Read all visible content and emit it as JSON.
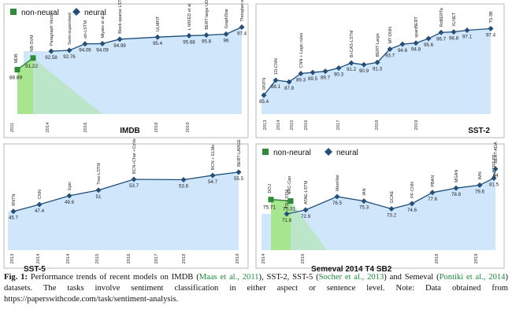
{
  "legend": {
    "non_neural": "non-neural",
    "neural": "neural"
  },
  "colors": {
    "area": "#cfe6fb",
    "line": "#1f4e79",
    "marker": "#264f78",
    "non_neural": "#2e8b3a",
    "green_area": "#a7e58f"
  },
  "chart_data": [
    {
      "type": "line",
      "title": "IMDB",
      "legend": [
        "non-neural",
        "neural"
      ],
      "legend_position": "top-left",
      "x_tick_labels": [
        "2011",
        "2014",
        "2016",
        "2018",
        "2019"
      ],
      "non_neural_points": [
        {
          "model": "MDB",
          "value": 88.89,
          "value_label": "88.89"
        },
        {
          "model": "NB-SVM",
          "value": 91.22,
          "value_label": "91.22"
        }
      ],
      "neural_points": [
        {
          "model": "Paragraph Vector",
          "value": 92.58,
          "value_label": "92.58"
        },
        {
          "model": "Semi-supervised",
          "value": 92.76,
          "value_label": "92.76"
        },
        {
          "model": "oh-LSTM",
          "value": 94.06,
          "value_label": "94.06"
        },
        {
          "model": "Miyato et al.",
          "value": 94.09,
          "value_label": "94.09"
        },
        {
          "model": "Block-sparse LSTM",
          "value": 94.99,
          "value_label": "94.99"
        },
        {
          "model": "ULMFiT",
          "value": 95.4,
          "value_label": "95.4"
        },
        {
          "model": "L MIXED et al.",
          "value": 95.68,
          "value_label": "95.68"
        },
        {
          "model": "BERT-large UDA",
          "value": 95.8,
          "value_label": "95.8"
        },
        {
          "model": "GraphStar",
          "value": 96,
          "value_label": "96"
        },
        {
          "model": "Thongtan et al.",
          "value": 97.4,
          "value_label": "97.4"
        }
      ]
    },
    {
      "type": "line",
      "title": "SST-2",
      "x_tick_labels": [
        "2013",
        "2014",
        "2015",
        "2016",
        "2017",
        "2018",
        "2019"
      ],
      "neural_points": [
        {
          "model": "RNTN",
          "value": 85.4,
          "value_label": "85.4"
        },
        {
          "model": "1D-CNN",
          "value": 88.1,
          "value_label": "88.1"
        },
        {
          "model": "",
          "value": 87.8,
          "value_label": "87.8"
        },
        {
          "model": "CNN + Logic rules",
          "value": 89.3,
          "value_label": "89.3"
        },
        {
          "model": "",
          "value": 89.5,
          "value_label": "89.5"
        },
        {
          "model": "",
          "value": 89.7,
          "value_label": "89.7"
        },
        {
          "model": "",
          "value": 90.3,
          "value_label": "90.3"
        },
        {
          "model": "Bi-CAS-LSTM",
          "value": 91.2,
          "value_label": "91.2"
        },
        {
          "model": "",
          "value": 90.9,
          "value_label": "90.9"
        },
        {
          "model": "BERT-Large",
          "value": 91.3,
          "value_label": "91.3"
        },
        {
          "model": "MT-DNN",
          "value": 93.7,
          "value_label": "93.7"
        },
        {
          "model": "",
          "value": 94.6,
          "value_label": "94.6"
        },
        {
          "model": "spanBERT",
          "value": 94.8,
          "value_label": "94.8"
        },
        {
          "model": "",
          "value": 95.6,
          "value_label": "95.6"
        },
        {
          "model": "RoBERTa",
          "value": 96.7,
          "value_label": "96.7"
        },
        {
          "model": "XLNET",
          "value": 96.8,
          "value_label": "96.8"
        },
        {
          "model": "",
          "value": 97.1,
          "value_label": "97.1"
        },
        {
          "model": "T5-3B",
          "value": 97.4,
          "value_label": "97.4"
        }
      ]
    },
    {
      "type": "line",
      "title": "SST-5",
      "x_tick_labels": [
        "2013",
        "2014",
        "2014",
        "2015",
        "2016",
        "2017",
        "2018",
        "2019"
      ],
      "neural_points": [
        {
          "model": "RNTN",
          "value": 45.7,
          "value_label": "45.7"
        },
        {
          "model": "CNN",
          "value": 47.4,
          "value_label": "47.4"
        },
        {
          "model": "Epic",
          "value": 49.6,
          "value_label": "49.6"
        },
        {
          "model": "Tree-LSTM",
          "value": 51,
          "value_label": "51"
        },
        {
          "model": "BCN+Char +CoVe",
          "value": 53.7,
          "value_label": "53.7"
        },
        {
          "model": "",
          "value": 53.6,
          "value_label": "53.6"
        },
        {
          "model": "BCN + ELMo",
          "value": 54.7,
          "value_label": "54.7"
        },
        {
          "model": "BERT-LARGE",
          "value": 55.5,
          "value_label": "55.5"
        }
      ]
    },
    {
      "type": "line",
      "title": "Semeval 2014 T4 SB2",
      "legend": [
        "non-neural",
        "neural"
      ],
      "legend_position": "top-left",
      "x_tick_labels": [
        "2014",
        "2016",
        "2018",
        "2019"
      ],
      "non_neural_points": [
        {
          "model": "DCU",
          "value": 75.71,
          "value_label": "75.71"
        },
        {
          "model": "NRC-Can",
          "value": 75.31,
          "value_label": "75.31"
        }
      ],
      "neural_points": [
        {
          "model": "TD-LSTM",
          "value": 71.8,
          "value_label": "71.8"
        },
        {
          "model": "ATAE-LSTM",
          "value": 72.9,
          "value_label": "72.9"
        },
        {
          "model": "MemNet",
          "value": 76.5,
          "value_label": "76.5"
        },
        {
          "model": "IAN",
          "value": 75.3,
          "value_label": "75.3"
        },
        {
          "model": "GCAE",
          "value": 73.2,
          "value_label": "73.2"
        },
        {
          "model": "PF-CNN",
          "value": 74.6,
          "value_label": "74.6"
        },
        {
          "model": "PBAN",
          "value": 77.6,
          "value_label": "77.6"
        },
        {
          "model": "MGAN",
          "value": 78.8,
          "value_label": "78.8"
        },
        {
          "model": "IMN",
          "value": 79.6,
          "value_label": "79.6"
        },
        {
          "model": "BERT-PT",
          "value": 81.5,
          "value_label": "81.5"
        },
        {
          "model": "BERT-ADA",
          "value": 84,
          "value_label": "84"
        }
      ]
    }
  ],
  "caption": {
    "label": "Fig. 1:",
    "t1": " Performance trends of recent models on IMDB (",
    "c1": "Maas et al., 2011",
    "t2": "), SST-2, SST-5 (",
    "c2": "Socher et al., 2013",
    "t3": ") and Semeval (",
    "c3": "Pontiki et al., 2014",
    "t4": ") datasets. The tasks involve sentiment classification in either aspect or sentence level. Note: Data obtained from https://paperswithcode.com/task/sentiment-analysis."
  }
}
